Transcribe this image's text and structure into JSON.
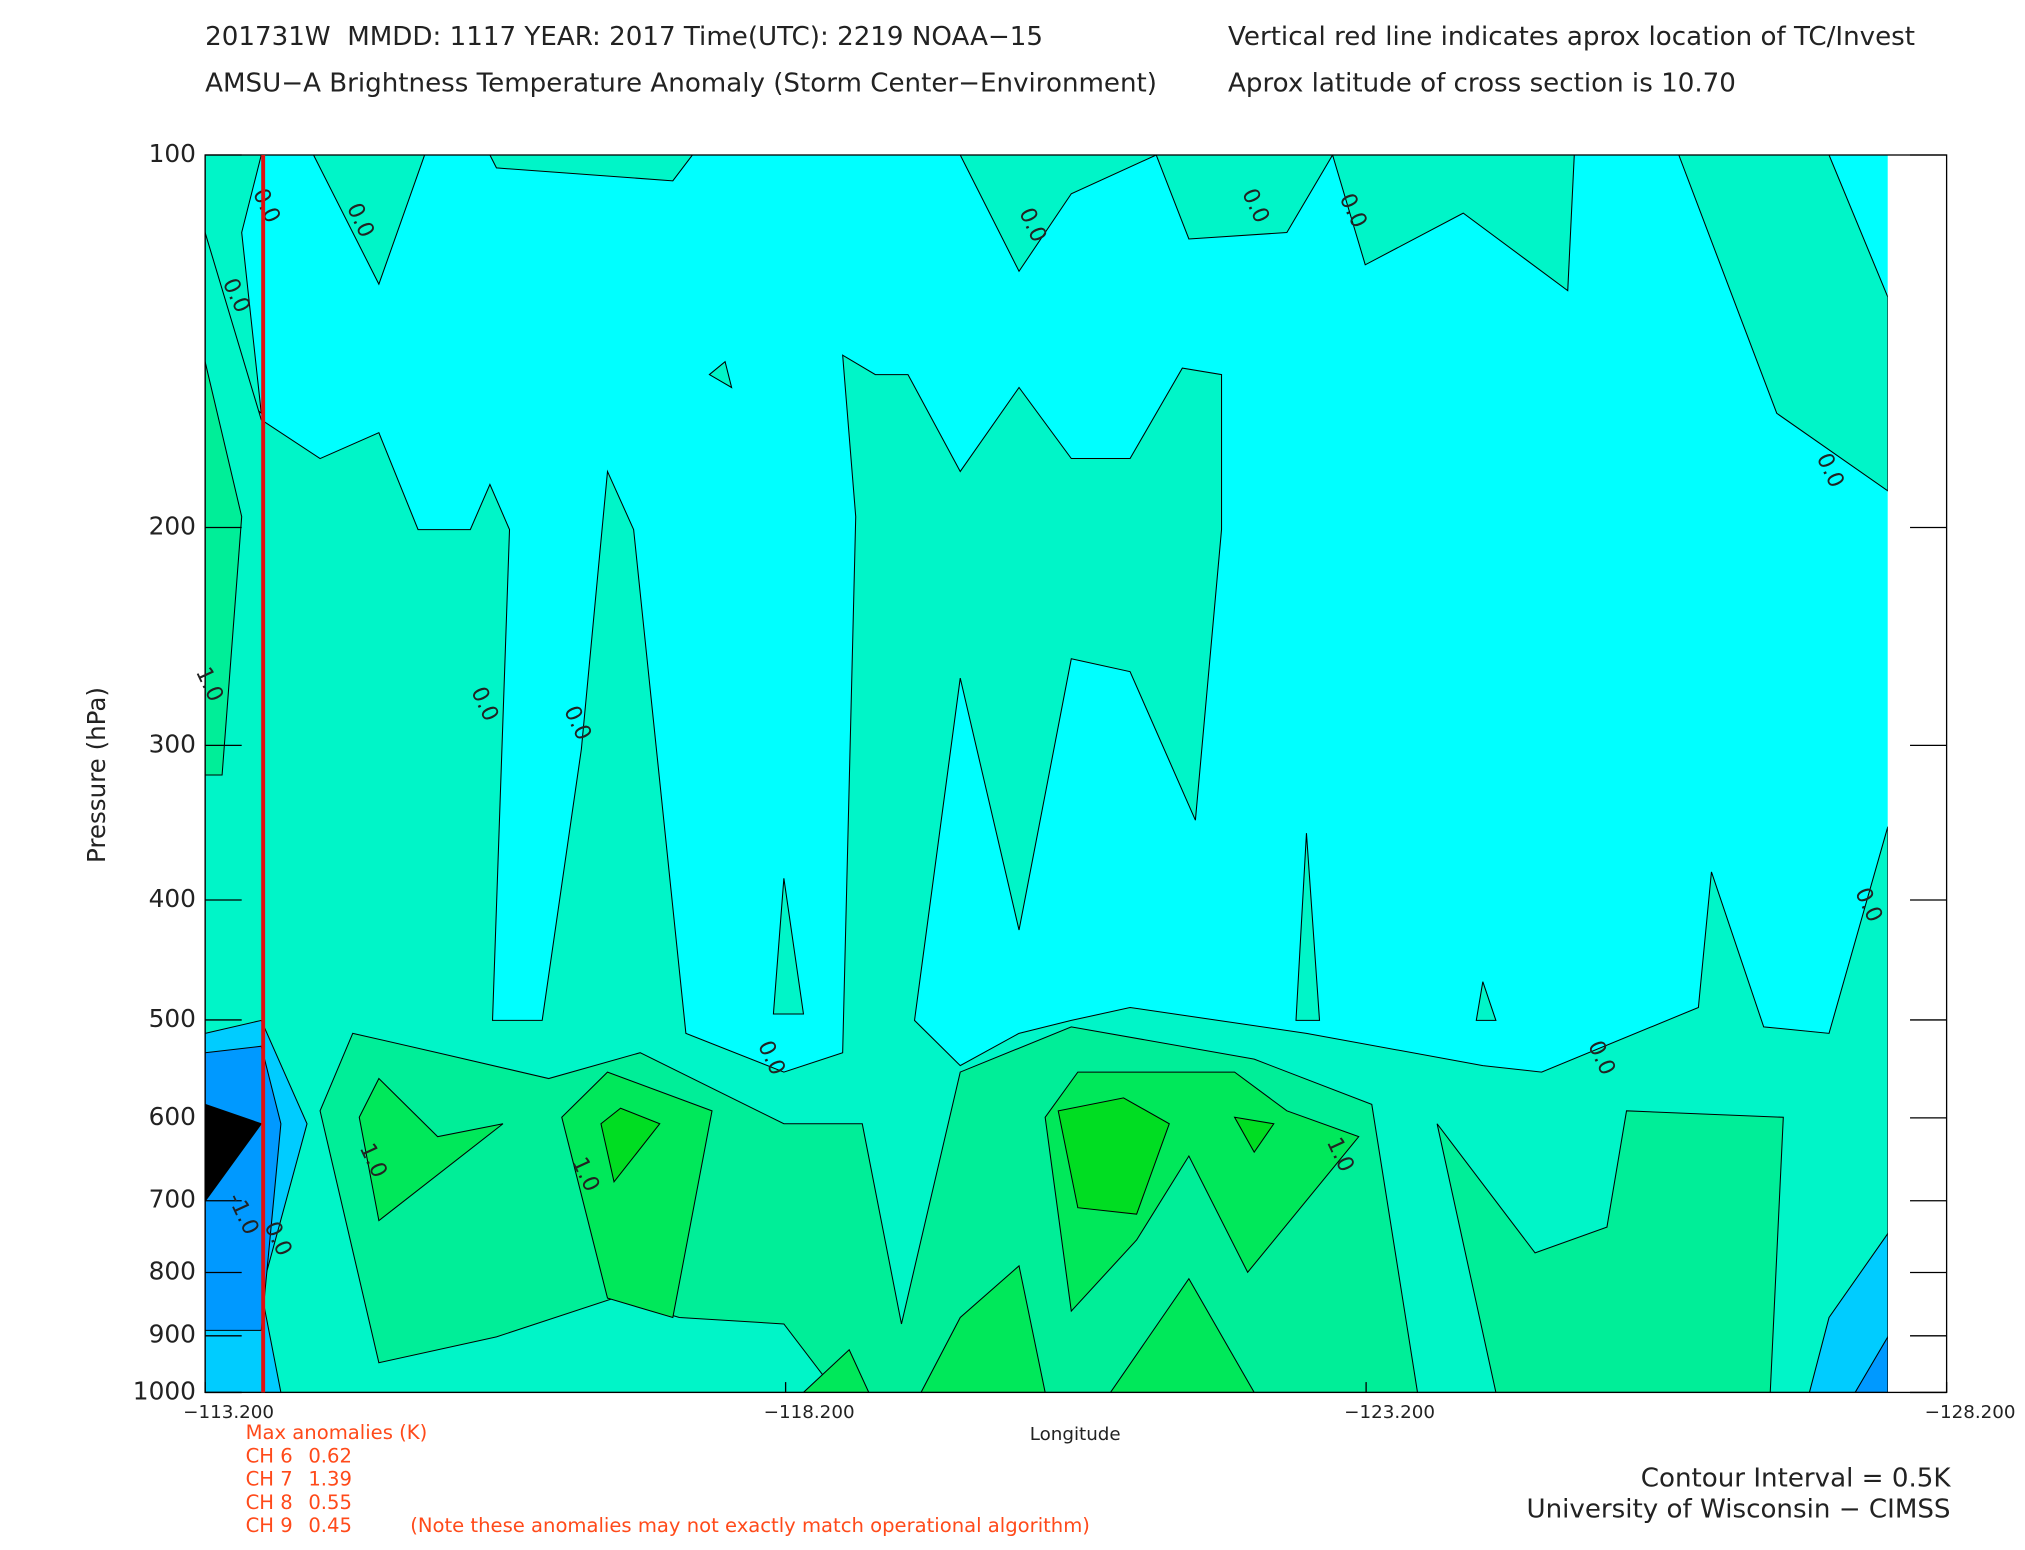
{
  "chart_data": {
    "type": "contour",
    "title_lines": [
      "201731W  MMDD: 1117 YEAR: 2017 Time(UTC): 2219 NOAA−15",
      "AMSU−A Brightness Temperature Anomaly (Storm Center−Environment)"
    ],
    "notes": [
      "Vertical red line indicates aprox location of TC/Invest",
      "Aprox latitude of cross section is 10.70"
    ],
    "x_label": "Longitude",
    "y_label": "Pressure (hPa)",
    "xlim": [
      -113.2,
      -128.2
    ],
    "xticks": [
      {
        "value": -113.2,
        "label": "−113.200"
      },
      {
        "value": -118.2,
        "label": "−118.200"
      },
      {
        "value": -123.2,
        "label": "−123.200"
      },
      {
        "value": -128.2,
        "label": "−128.200"
      }
    ],
    "ylim": [
      100,
      1000
    ],
    "y_log": true,
    "y_inverted": true,
    "yticks": [
      100,
      200,
      300,
      400,
      500,
      600,
      700,
      800,
      900,
      1000
    ],
    "tc_longitude": -113.7,
    "tc_line_color": "#e01010",
    "contour_labels": [
      {
        "text": "0.0",
        "x": -113.72,
        "y": 110
      },
      {
        "text": "0.0",
        "x": -114.53,
        "y": 113
      },
      {
        "text": "0.0",
        "x": -113.46,
        "y": 130
      },
      {
        "text": "0.0",
        "x": -115.6,
        "y": 278
      },
      {
        "text": "0.0",
        "x": -116.4,
        "y": 288
      },
      {
        "text": "0.0",
        "x": -118.07,
        "y": 537
      },
      {
        "text": "0.0",
        "x": -120.32,
        "y": 114
      },
      {
        "text": "0.0",
        "x": -122.24,
        "y": 110
      },
      {
        "text": "0.0",
        "x": -123.08,
        "y": 111
      },
      {
        "text": "0.0",
        "x": -127.19,
        "y": 180
      },
      {
        "text": "0.0",
        "x": -127.52,
        "y": 404
      },
      {
        "text": "0.0",
        "x": -125.22,
        "y": 537
      },
      {
        "text": "1.0",
        "x": -114.64,
        "y": 650
      },
      {
        "text": "1.0",
        "x": -116.47,
        "y": 667
      },
      {
        "text": "1.0",
        "x": -122.97,
        "y": 643
      },
      {
        "text": "1.0",
        "x": -113.23,
        "y": 268
      },
      {
        "text": "-1.0",
        "x": -113.52,
        "y": 718
      },
      {
        "text": "0.0",
        "x": -113.82,
        "y": 752
      }
    ],
    "max_anomalies": {
      "title": "Max anomalies (K)",
      "rows": [
        {
          "channel": "CH 6",
          "value": 0.62
        },
        {
          "channel": "CH 7",
          "value": 1.39
        },
        {
          "channel": "CH 8",
          "value": 0.55
        },
        {
          "channel": "CH 9",
          "value": 0.45
        }
      ],
      "note": "(Note these anomalies may not exactly match operational algorithm)"
    },
    "footer": [
      "Contour Interval = 0.5K",
      "University of Wisconsin − CIMSS"
    ]
  }
}
